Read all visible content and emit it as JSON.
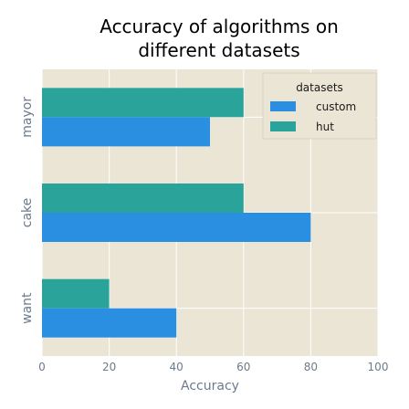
{
  "chart_data": {
    "type": "bar",
    "orientation": "horizontal",
    "title": "Accuracy of algorithms on different datasets",
    "title_lines": [
      "Accuracy of algorithms on",
      "different datasets"
    ],
    "xlabel": "Accuracy",
    "ylabel": "",
    "categories": [
      "want",
      "cake",
      "mayor"
    ],
    "series": [
      {
        "name": "custom",
        "values": [
          40,
          80,
          50
        ],
        "color": "#2a8fe0"
      },
      {
        "name": "hut",
        "values": [
          20,
          60,
          60
        ],
        "color": "#2aa39a"
      }
    ],
    "xlim": [
      0,
      100
    ],
    "xticks": [
      0,
      20,
      40,
      60,
      80,
      100
    ],
    "grid": true,
    "legend": {
      "title": "datasets",
      "placement": "top-right"
    },
    "colors": {
      "plot_background": "#ebe5d6",
      "grid": "#ffffff"
    }
  }
}
